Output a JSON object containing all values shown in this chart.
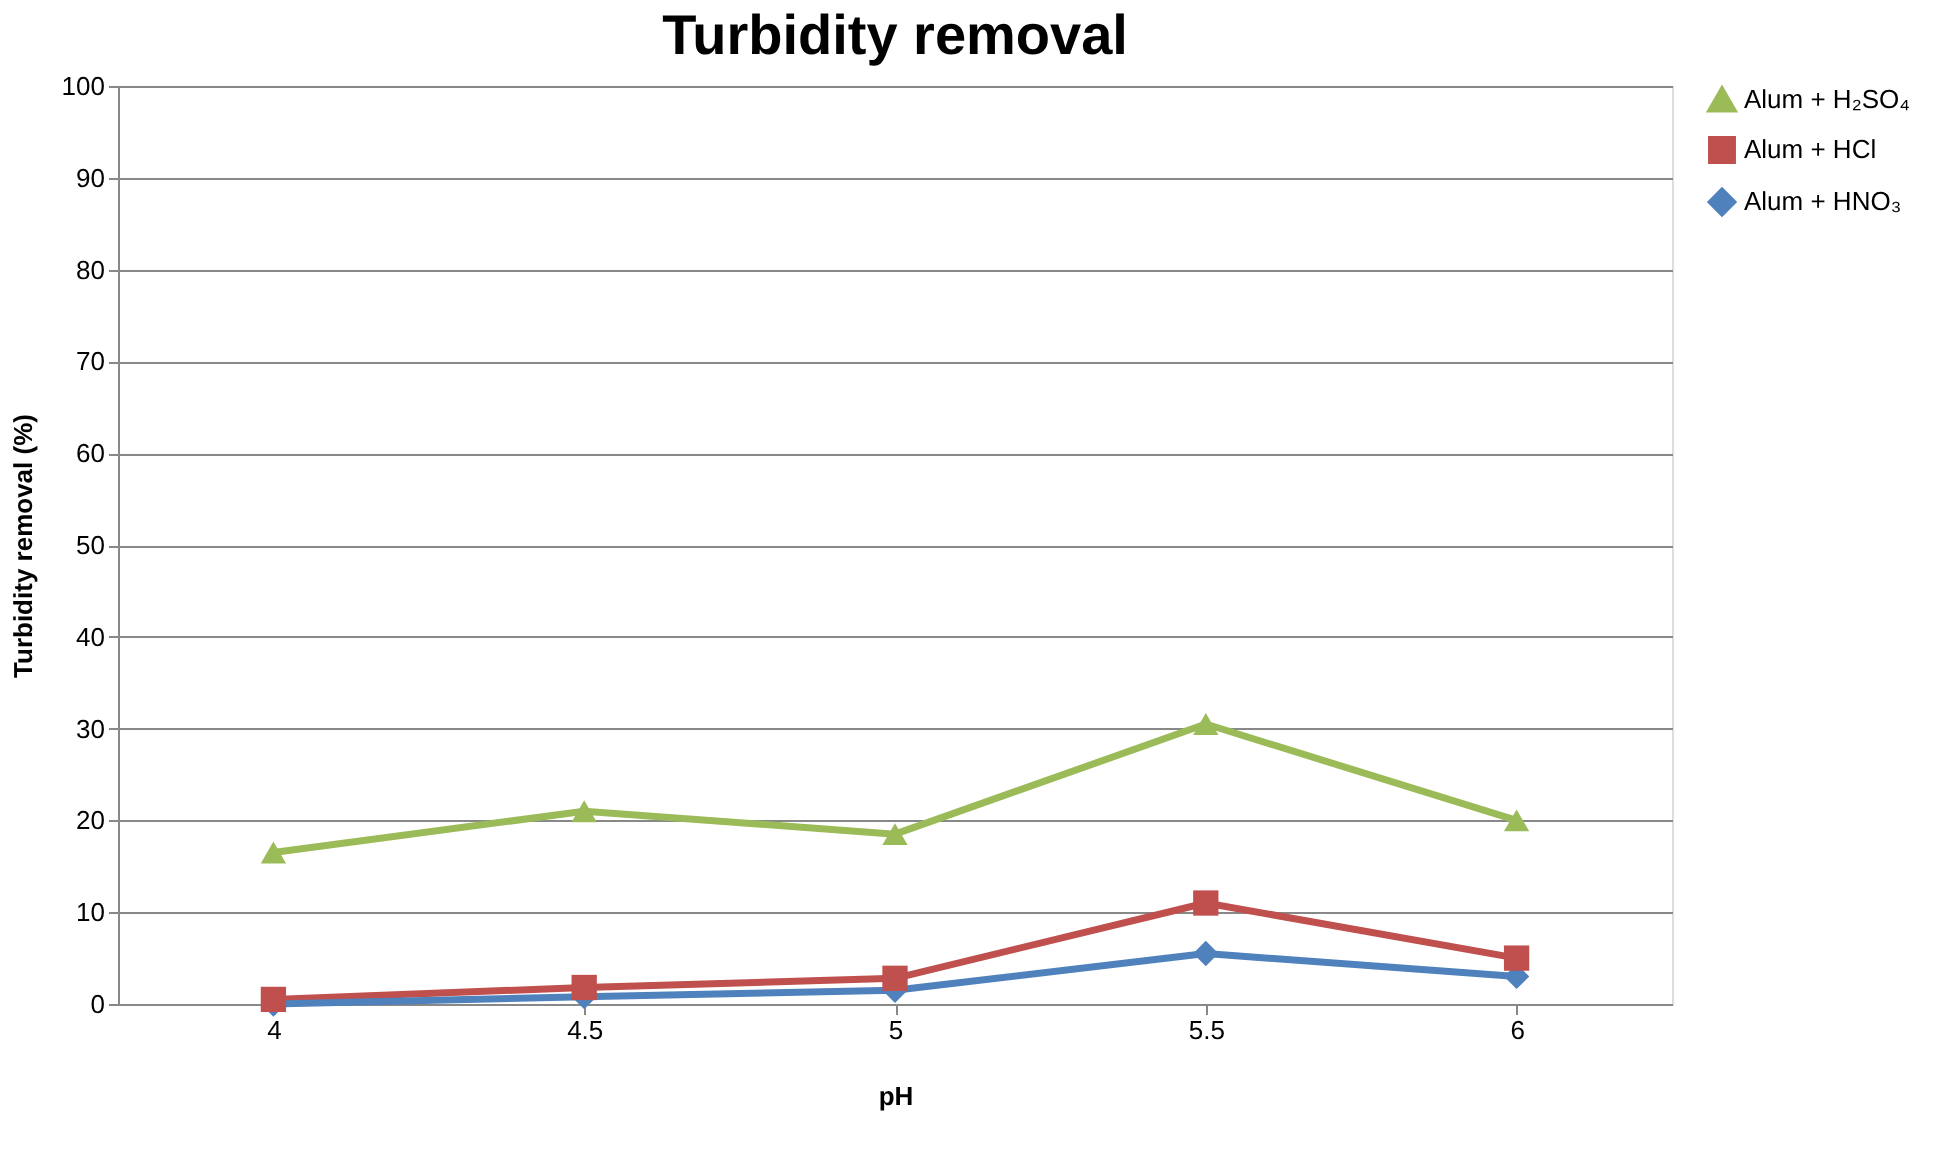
{
  "chart_data": {
    "type": "line",
    "title": "Turbidity removal",
    "xlabel": "pH",
    "ylabel": "Turbidity removal (%)",
    "categories": [
      "4",
      "4.5",
      "5",
      "5.5",
      "6"
    ],
    "series": [
      {
        "name": "Alum + H₂SO₄",
        "color": "#9bbb59",
        "marker": "triangle",
        "values": [
          16.5,
          21,
          18.5,
          30.5,
          20
        ]
      },
      {
        "name": "Alum + HCl",
        "color": "#c0504d",
        "marker": "square",
        "values": [
          0.5,
          1.8,
          2.8,
          11,
          5
        ]
      },
      {
        "name": "Alum + HNO₃",
        "color": "#4f81bd",
        "marker": "diamond",
        "values": [
          0,
          0.8,
          1.5,
          5.5,
          3
        ]
      }
    ],
    "ylim": [
      0,
      100
    ],
    "yticks": [
      0,
      10,
      20,
      30,
      40,
      50,
      60,
      70,
      80,
      90,
      100
    ],
    "grid": "y",
    "legend": "right",
    "line_style": "solid"
  }
}
